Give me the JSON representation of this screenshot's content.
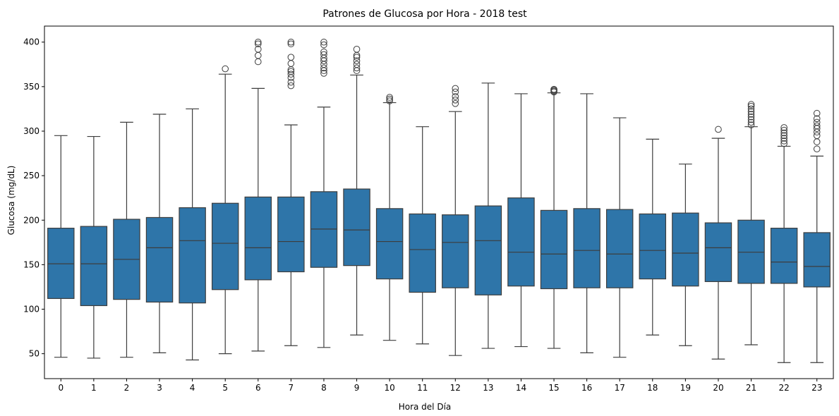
{
  "chart_data": {
    "type": "box",
    "title": "Patrones de Glucosa por Hora - 2018 test",
    "xlabel": "Hora del Día",
    "ylabel": "Glucosa (mg/dL)",
    "ylim": [
      22,
      418
    ],
    "yticks": [
      50,
      100,
      150,
      200,
      250,
      300,
      350,
      400
    ],
    "box_color": "#2e75a9",
    "line_color": "#3d3d3d",
    "categories": [
      "0",
      "1",
      "2",
      "3",
      "4",
      "5",
      "6",
      "7",
      "8",
      "9",
      "10",
      "11",
      "12",
      "13",
      "14",
      "15",
      "16",
      "17",
      "18",
      "19",
      "20",
      "21",
      "22",
      "23"
    ],
    "boxes": [
      {
        "x": "0",
        "whislo": 46,
        "q1": 112,
        "med": 151,
        "q3": 191,
        "whishi": 295,
        "fliers": []
      },
      {
        "x": "1",
        "whislo": 45,
        "q1": 104,
        "med": 151,
        "q3": 193,
        "whishi": 294,
        "fliers": []
      },
      {
        "x": "2",
        "whislo": 46,
        "q1": 111,
        "med": 156,
        "q3": 201,
        "whishi": 310,
        "fliers": []
      },
      {
        "x": "3",
        "whislo": 51,
        "q1": 108,
        "med": 169,
        "q3": 203,
        "whishi": 319,
        "fliers": []
      },
      {
        "x": "4",
        "whislo": 43,
        "q1": 107,
        "med": 177,
        "q3": 214,
        "whishi": 325,
        "fliers": []
      },
      {
        "x": "5",
        "whislo": 50,
        "q1": 122,
        "med": 174,
        "q3": 219,
        "whishi": 364,
        "fliers": [
          370
        ]
      },
      {
        "x": "6",
        "whislo": 53,
        "q1": 133,
        "med": 169,
        "q3": 226,
        "whishi": 348,
        "fliers": [
          378,
          385,
          392,
          398,
          400
        ]
      },
      {
        "x": "7",
        "whislo": 59,
        "q1": 142,
        "med": 176,
        "q3": 226,
        "whishi": 307,
        "fliers": [
          351,
          355,
          360,
          364,
          367,
          369,
          376,
          383,
          398,
          400
        ]
      },
      {
        "x": "8",
        "whislo": 57,
        "q1": 147,
        "med": 190,
        "q3": 232,
        "whishi": 327,
        "fliers": [
          365,
          368,
          371,
          375,
          379,
          382,
          386,
          389,
          397,
          400
        ]
      },
      {
        "x": "9",
        "whislo": 71,
        "q1": 149,
        "med": 189,
        "q3": 235,
        "whishi": 363,
        "fliers": [
          368,
          371,
          375,
          379,
          383,
          385,
          392
        ]
      },
      {
        "x": "10",
        "whislo": 65,
        "q1": 134,
        "med": 176,
        "q3": 213,
        "whishi": 332,
        "fliers": [
          334,
          336,
          338
        ]
      },
      {
        "x": "11",
        "whislo": 61,
        "q1": 119,
        "med": 167,
        "q3": 207,
        "whishi": 305,
        "fliers": []
      },
      {
        "x": "12",
        "whislo": 48,
        "q1": 124,
        "med": 175,
        "q3": 206,
        "whishi": 322,
        "fliers": [
          331,
          335,
          339,
          344,
          348
        ]
      },
      {
        "x": "13",
        "whislo": 56,
        "q1": 116,
        "med": 177,
        "q3": 216,
        "whishi": 354,
        "fliers": []
      },
      {
        "x": "14",
        "whislo": 58,
        "q1": 126,
        "med": 164,
        "q3": 225,
        "whishi": 342,
        "fliers": []
      },
      {
        "x": "15",
        "whislo": 56,
        "q1": 123,
        "med": 162,
        "q3": 211,
        "whishi": 343,
        "fliers": [
          344,
          345,
          346,
          347
        ]
      },
      {
        "x": "16",
        "whislo": 51,
        "q1": 124,
        "med": 166,
        "q3": 213,
        "whishi": 342,
        "fliers": []
      },
      {
        "x": "17",
        "whislo": 46,
        "q1": 124,
        "med": 162,
        "q3": 212,
        "whishi": 315,
        "fliers": []
      },
      {
        "x": "18",
        "whislo": 71,
        "q1": 134,
        "med": 166,
        "q3": 207,
        "whishi": 291,
        "fliers": []
      },
      {
        "x": "19",
        "whislo": 59,
        "q1": 126,
        "med": 163,
        "q3": 208,
        "whishi": 263,
        "fliers": []
      },
      {
        "x": "20",
        "whislo": 44,
        "q1": 131,
        "med": 169,
        "q3": 197,
        "whishi": 292,
        "fliers": [
          302
        ]
      },
      {
        "x": "21",
        "whislo": 60,
        "q1": 129,
        "med": 164,
        "q3": 200,
        "whishi": 305,
        "fliers": [
          307,
          310,
          313,
          316,
          319,
          322,
          325,
          328,
          330
        ]
      },
      {
        "x": "22",
        "whislo": 40,
        "q1": 129,
        "med": 153,
        "q3": 191,
        "whishi": 283,
        "fliers": [
          286,
          289,
          292,
          295,
          298,
          301,
          304
        ]
      },
      {
        "x": "23",
        "whislo": 40,
        "q1": 125,
        "med": 148,
        "q3": 186,
        "whishi": 272,
        "fliers": [
          280,
          288,
          295,
          299,
          303,
          306,
          310,
          314,
          320
        ]
      }
    ]
  }
}
